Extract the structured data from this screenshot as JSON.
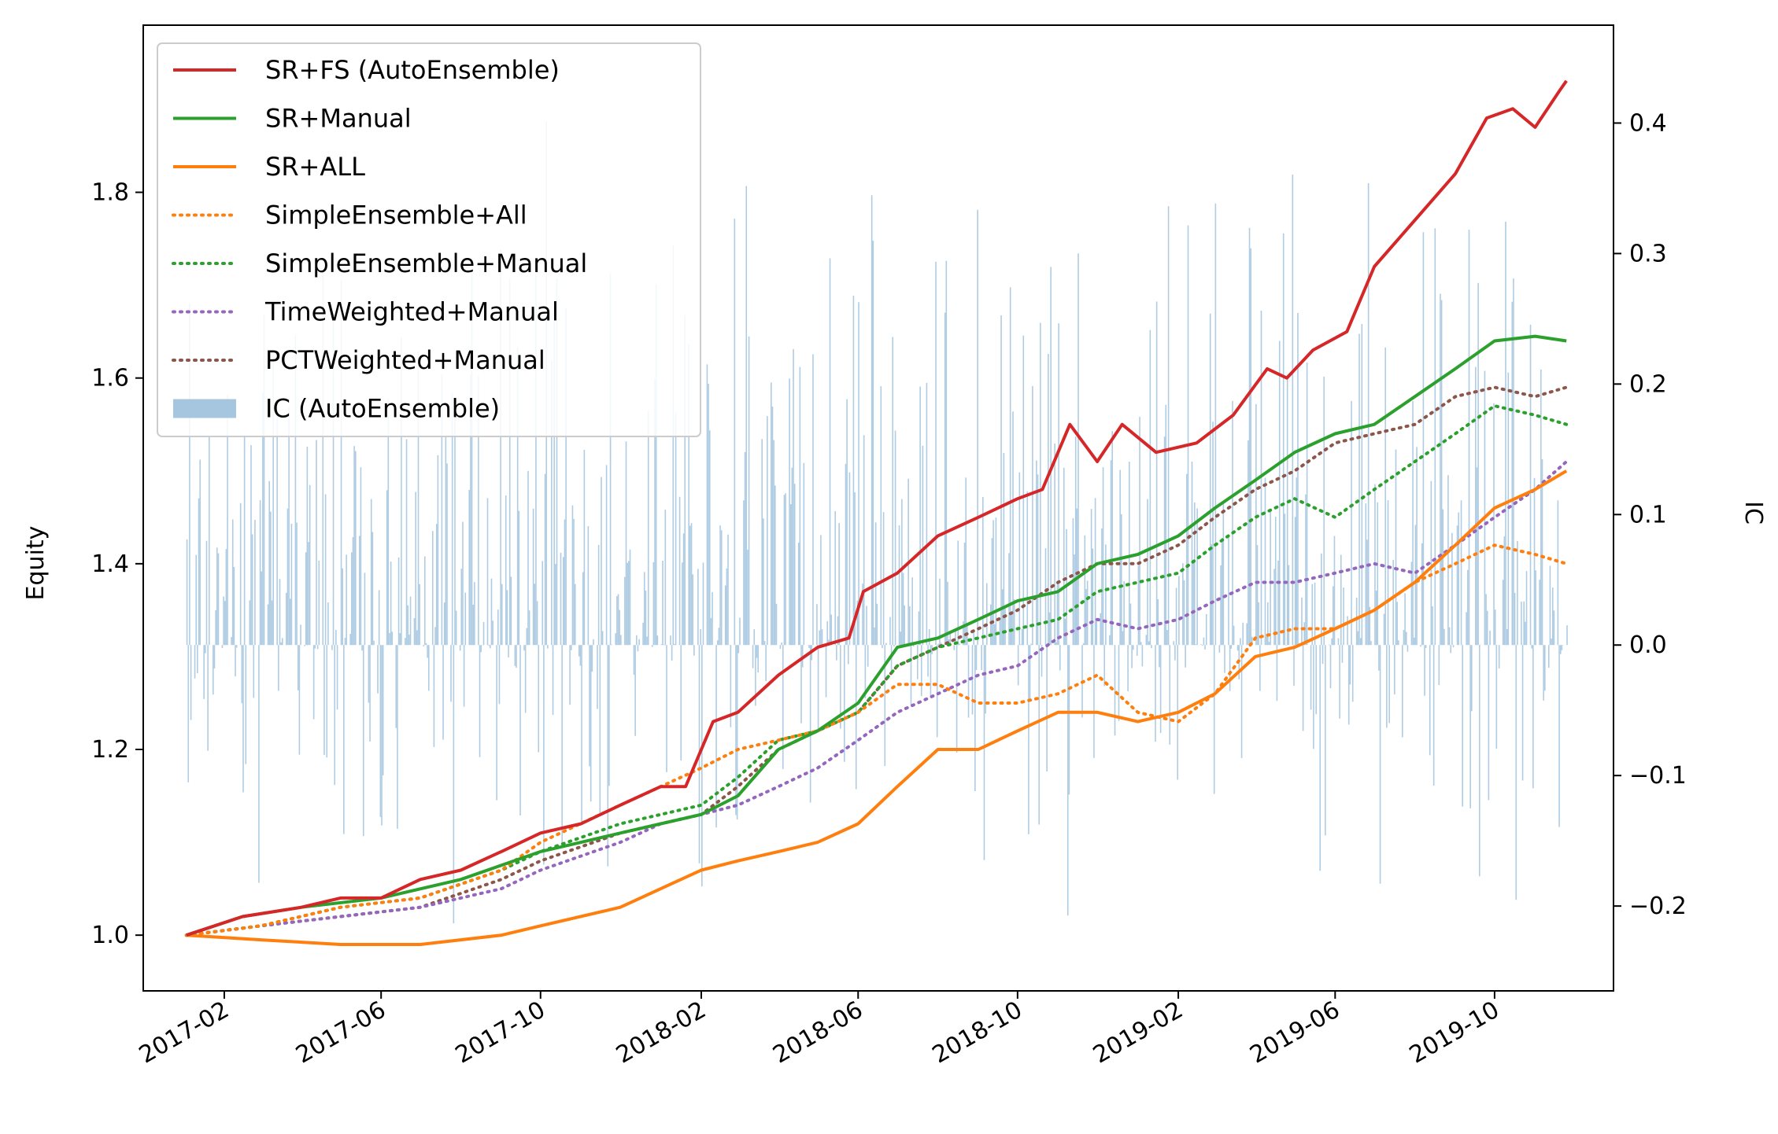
{
  "chart_data": {
    "type": "line",
    "title": "",
    "xlabel": "",
    "ylabel": "Equity",
    "y2label": "IC",
    "x_ticks": [
      "2017-02",
      "2017-06",
      "2017-10",
      "2018-02",
      "2018-06",
      "2018-10",
      "2019-02",
      "2019-06",
      "2019-10"
    ],
    "x_range": [
      "2016-12-01",
      "2019-12-31"
    ],
    "ylim": [
      0.94,
      1.98
    ],
    "y_ticks": [
      "1.0",
      "1.2",
      "1.4",
      "1.6",
      "1.8"
    ],
    "y2lim": [
      -0.265,
      0.475
    ],
    "y2_ticks": [
      "0.4",
      "0.3",
      "0.2",
      "0.1",
      "0.0",
      "−0.1",
      "−0.2"
    ],
    "legend_position": "upper-left",
    "grid": false,
    "series": [
      {
        "name": "SR+FS (AutoEnsemble)",
        "style": "solid",
        "color": "#d62728",
        "points": [
          [
            "2017-01-03",
            1.0
          ],
          [
            "2017-02-15",
            1.02
          ],
          [
            "2017-04-01",
            1.03
          ],
          [
            "2017-05-01",
            1.04
          ],
          [
            "2017-06-01",
            1.04
          ],
          [
            "2017-07-01",
            1.06
          ],
          [
            "2017-08-01",
            1.07
          ],
          [
            "2017-09-01",
            1.09
          ],
          [
            "2017-10-01",
            1.11
          ],
          [
            "2017-11-01",
            1.12
          ],
          [
            "2017-12-01",
            1.14
          ],
          [
            "2018-01-01",
            1.16
          ],
          [
            "2018-01-20",
            1.16
          ],
          [
            "2018-02-10",
            1.23
          ],
          [
            "2018-03-01",
            1.24
          ],
          [
            "2018-04-01",
            1.28
          ],
          [
            "2018-05-01",
            1.31
          ],
          [
            "2018-05-25",
            1.32
          ],
          [
            "2018-06-05",
            1.37
          ],
          [
            "2018-07-01",
            1.39
          ],
          [
            "2018-08-01",
            1.43
          ],
          [
            "2018-09-01",
            1.45
          ],
          [
            "2018-10-01",
            1.47
          ],
          [
            "2018-10-20",
            1.48
          ],
          [
            "2018-11-10",
            1.55
          ],
          [
            "2018-12-01",
            1.51
          ],
          [
            "2018-12-20",
            1.55
          ],
          [
            "2019-01-15",
            1.52
          ],
          [
            "2019-02-15",
            1.53
          ],
          [
            "2019-03-15",
            1.56
          ],
          [
            "2019-04-10",
            1.61
          ],
          [
            "2019-04-25",
            1.6
          ],
          [
            "2019-05-15",
            1.63
          ],
          [
            "2019-06-10",
            1.65
          ],
          [
            "2019-07-01",
            1.72
          ],
          [
            "2019-08-01",
            1.77
          ],
          [
            "2019-09-01",
            1.82
          ],
          [
            "2019-09-25",
            1.88
          ],
          [
            "2019-10-15",
            1.89
          ],
          [
            "2019-11-01",
            1.87
          ],
          [
            "2019-11-20",
            1.91
          ],
          [
            "2019-11-25",
            1.92
          ]
        ]
      },
      {
        "name": "SR+Manual",
        "style": "solid",
        "color": "#2ca02c",
        "points": [
          [
            "2017-01-03",
            1.0
          ],
          [
            "2017-02-15",
            1.02
          ],
          [
            "2017-04-01",
            1.03
          ],
          [
            "2017-06-01",
            1.04
          ],
          [
            "2017-08-01",
            1.06
          ],
          [
            "2017-10-01",
            1.09
          ],
          [
            "2017-11-01",
            1.1
          ],
          [
            "2017-12-01",
            1.11
          ],
          [
            "2018-01-01",
            1.12
          ],
          [
            "2018-02-01",
            1.13
          ],
          [
            "2018-03-01",
            1.15
          ],
          [
            "2018-04-01",
            1.2
          ],
          [
            "2018-05-01",
            1.22
          ],
          [
            "2018-06-01",
            1.25
          ],
          [
            "2018-07-01",
            1.31
          ],
          [
            "2018-08-01",
            1.32
          ],
          [
            "2018-09-01",
            1.34
          ],
          [
            "2018-10-01",
            1.36
          ],
          [
            "2018-11-01",
            1.37
          ],
          [
            "2018-12-01",
            1.4
          ],
          [
            "2019-01-01",
            1.41
          ],
          [
            "2019-02-01",
            1.43
          ],
          [
            "2019-03-01",
            1.46
          ],
          [
            "2019-04-01",
            1.49
          ],
          [
            "2019-05-01",
            1.52
          ],
          [
            "2019-06-01",
            1.54
          ],
          [
            "2019-07-01",
            1.55
          ],
          [
            "2019-08-01",
            1.58
          ],
          [
            "2019-09-01",
            1.61
          ],
          [
            "2019-10-01",
            1.64
          ],
          [
            "2019-11-01",
            1.645
          ],
          [
            "2019-11-25",
            1.64
          ]
        ]
      },
      {
        "name": "SR+ALL",
        "style": "solid",
        "color": "#ff7f0e",
        "points": [
          [
            "2017-01-03",
            1.0
          ],
          [
            "2017-03-01",
            0.995
          ],
          [
            "2017-05-01",
            0.99
          ],
          [
            "2017-07-01",
            0.99
          ],
          [
            "2017-09-01",
            1.0
          ],
          [
            "2017-10-01",
            1.01
          ],
          [
            "2017-12-01",
            1.03
          ],
          [
            "2018-01-01",
            1.05
          ],
          [
            "2018-02-01",
            1.07
          ],
          [
            "2018-03-01",
            1.08
          ],
          [
            "2018-04-01",
            1.09
          ],
          [
            "2018-05-01",
            1.1
          ],
          [
            "2018-06-01",
            1.12
          ],
          [
            "2018-07-01",
            1.16
          ],
          [
            "2018-08-01",
            1.2
          ],
          [
            "2018-09-01",
            1.2
          ],
          [
            "2018-10-01",
            1.22
          ],
          [
            "2018-11-01",
            1.24
          ],
          [
            "2018-12-01",
            1.24
          ],
          [
            "2019-01-01",
            1.23
          ],
          [
            "2019-02-01",
            1.24
          ],
          [
            "2019-03-01",
            1.26
          ],
          [
            "2019-04-01",
            1.3
          ],
          [
            "2019-05-01",
            1.31
          ],
          [
            "2019-06-01",
            1.33
          ],
          [
            "2019-07-01",
            1.35
          ],
          [
            "2019-08-01",
            1.38
          ],
          [
            "2019-09-01",
            1.42
          ],
          [
            "2019-10-01",
            1.46
          ],
          [
            "2019-11-01",
            1.48
          ],
          [
            "2019-11-25",
            1.5
          ]
        ]
      },
      {
        "name": "SimpleEnsemble+All",
        "style": "dotted",
        "color": "#ff7f0e",
        "points": [
          [
            "2017-01-03",
            1.0
          ],
          [
            "2017-03-01",
            1.01
          ],
          [
            "2017-05-01",
            1.03
          ],
          [
            "2017-07-01",
            1.04
          ],
          [
            "2017-09-01",
            1.07
          ],
          [
            "2017-10-01",
            1.1
          ],
          [
            "2017-12-01",
            1.14
          ],
          [
            "2018-01-01",
            1.16
          ],
          [
            "2018-02-01",
            1.18
          ],
          [
            "2018-03-01",
            1.2
          ],
          [
            "2018-04-01",
            1.21
          ],
          [
            "2018-05-01",
            1.22
          ],
          [
            "2018-06-01",
            1.24
          ],
          [
            "2018-07-01",
            1.27
          ],
          [
            "2018-08-01",
            1.27
          ],
          [
            "2018-09-01",
            1.25
          ],
          [
            "2018-10-01",
            1.25
          ],
          [
            "2018-11-01",
            1.26
          ],
          [
            "2018-12-01",
            1.28
          ],
          [
            "2019-01-01",
            1.24
          ],
          [
            "2019-02-01",
            1.23
          ],
          [
            "2019-03-01",
            1.26
          ],
          [
            "2019-04-01",
            1.32
          ],
          [
            "2019-05-01",
            1.33
          ],
          [
            "2019-06-01",
            1.33
          ],
          [
            "2019-07-01",
            1.35
          ],
          [
            "2019-08-01",
            1.38
          ],
          [
            "2019-09-01",
            1.4
          ],
          [
            "2019-10-01",
            1.42
          ],
          [
            "2019-11-01",
            1.41
          ],
          [
            "2019-11-25",
            1.4
          ]
        ]
      },
      {
        "name": "SimpleEnsemble+Manual",
        "style": "dotted",
        "color": "#2ca02c",
        "points": [
          [
            "2017-01-03",
            1.0
          ],
          [
            "2017-03-01",
            1.01
          ],
          [
            "2017-05-01",
            1.03
          ],
          [
            "2017-07-01",
            1.04
          ],
          [
            "2017-09-01",
            1.07
          ],
          [
            "2017-10-01",
            1.09
          ],
          [
            "2017-12-01",
            1.12
          ],
          [
            "2018-01-01",
            1.13
          ],
          [
            "2018-02-01",
            1.14
          ],
          [
            "2018-03-01",
            1.17
          ],
          [
            "2018-04-01",
            1.21
          ],
          [
            "2018-05-01",
            1.22
          ],
          [
            "2018-06-01",
            1.24
          ],
          [
            "2018-07-01",
            1.29
          ],
          [
            "2018-08-01",
            1.31
          ],
          [
            "2018-09-01",
            1.32
          ],
          [
            "2018-10-01",
            1.33
          ],
          [
            "2018-11-01",
            1.34
          ],
          [
            "2018-12-01",
            1.37
          ],
          [
            "2019-01-01",
            1.38
          ],
          [
            "2019-02-01",
            1.39
          ],
          [
            "2019-03-01",
            1.42
          ],
          [
            "2019-04-01",
            1.45
          ],
          [
            "2019-05-01",
            1.47
          ],
          [
            "2019-06-01",
            1.45
          ],
          [
            "2019-07-01",
            1.48
          ],
          [
            "2019-08-01",
            1.51
          ],
          [
            "2019-09-01",
            1.54
          ],
          [
            "2019-10-01",
            1.57
          ],
          [
            "2019-11-01",
            1.56
          ],
          [
            "2019-11-25",
            1.55
          ]
        ]
      },
      {
        "name": "TimeWeighted+Manual",
        "style": "dotted",
        "color": "#9467bd",
        "points": [
          [
            "2017-01-03",
            1.0
          ],
          [
            "2017-03-01",
            1.01
          ],
          [
            "2017-05-01",
            1.02
          ],
          [
            "2017-07-01",
            1.03
          ],
          [
            "2017-09-01",
            1.05
          ],
          [
            "2017-10-01",
            1.07
          ],
          [
            "2017-12-01",
            1.1
          ],
          [
            "2018-01-01",
            1.12
          ],
          [
            "2018-02-01",
            1.13
          ],
          [
            "2018-03-01",
            1.14
          ],
          [
            "2018-04-01",
            1.16
          ],
          [
            "2018-05-01",
            1.18
          ],
          [
            "2018-06-01",
            1.21
          ],
          [
            "2018-07-01",
            1.24
          ],
          [
            "2018-08-01",
            1.26
          ],
          [
            "2018-09-01",
            1.28
          ],
          [
            "2018-10-01",
            1.29
          ],
          [
            "2018-11-01",
            1.32
          ],
          [
            "2018-12-01",
            1.34
          ],
          [
            "2019-01-01",
            1.33
          ],
          [
            "2019-02-01",
            1.34
          ],
          [
            "2019-03-01",
            1.36
          ],
          [
            "2019-04-01",
            1.38
          ],
          [
            "2019-05-01",
            1.38
          ],
          [
            "2019-06-01",
            1.39
          ],
          [
            "2019-07-01",
            1.4
          ],
          [
            "2019-08-01",
            1.39
          ],
          [
            "2019-09-01",
            1.42
          ],
          [
            "2019-10-01",
            1.45
          ],
          [
            "2019-11-01",
            1.48
          ],
          [
            "2019-11-25",
            1.51
          ]
        ]
      },
      {
        "name": "PCTWeighted+Manual",
        "style": "dotted",
        "color": "#8c564b",
        "points": [
          [
            "2017-01-03",
            1.0
          ],
          [
            "2017-03-01",
            1.01
          ],
          [
            "2017-05-01",
            1.02
          ],
          [
            "2017-07-01",
            1.03
          ],
          [
            "2017-09-01",
            1.06
          ],
          [
            "2017-10-01",
            1.08
          ],
          [
            "2017-12-01",
            1.11
          ],
          [
            "2018-01-01",
            1.12
          ],
          [
            "2018-02-01",
            1.13
          ],
          [
            "2018-03-01",
            1.16
          ],
          [
            "2018-04-01",
            1.2
          ],
          [
            "2018-05-01",
            1.22
          ],
          [
            "2018-06-01",
            1.24
          ],
          [
            "2018-07-01",
            1.29
          ],
          [
            "2018-08-01",
            1.31
          ],
          [
            "2018-09-01",
            1.33
          ],
          [
            "2018-10-01",
            1.35
          ],
          [
            "2018-11-01",
            1.38
          ],
          [
            "2018-12-01",
            1.4
          ],
          [
            "2019-01-01",
            1.4
          ],
          [
            "2019-02-01",
            1.42
          ],
          [
            "2019-03-01",
            1.45
          ],
          [
            "2019-04-01",
            1.48
          ],
          [
            "2019-05-01",
            1.5
          ],
          [
            "2019-06-01",
            1.53
          ],
          [
            "2019-07-01",
            1.54
          ],
          [
            "2019-08-01",
            1.55
          ],
          [
            "2019-09-01",
            1.58
          ],
          [
            "2019-10-01",
            1.59
          ],
          [
            "2019-11-01",
            1.58
          ],
          [
            "2019-11-25",
            1.59
          ]
        ]
      }
    ],
    "bar_series": {
      "name": "IC (AutoEnsemble)",
      "color": "#a6c6e0",
      "axis": "right",
      "start": "2017-01-03",
      "end": "2019-11-25",
      "typical_range": [
        -0.23,
        0.42
      ]
    }
  }
}
